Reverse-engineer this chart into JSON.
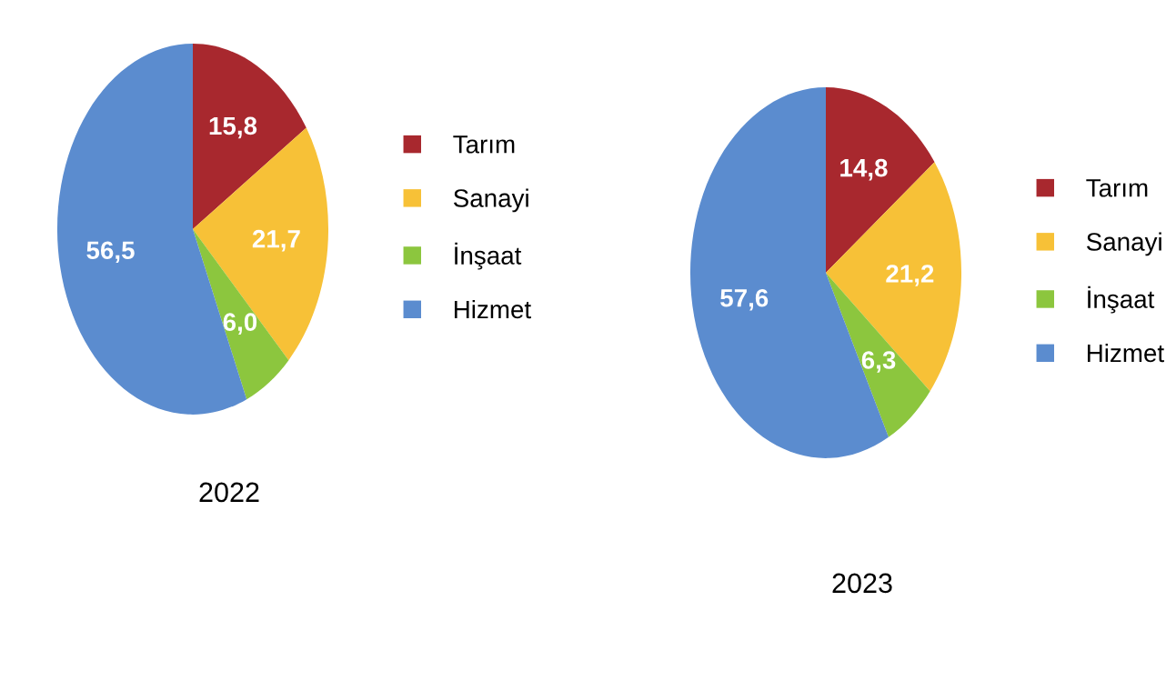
{
  "chart_data": [
    {
      "type": "pie",
      "title": "2022",
      "categories": [
        "Tarım",
        "Sanayi",
        "İnşaat",
        "Hizmet"
      ],
      "values": [
        15.8,
        21.7,
        6.0,
        56.5
      ],
      "value_labels": [
        "15,8",
        "21,7",
        "6,0",
        "56,5"
      ],
      "colors": [
        "#a8282e",
        "#f7c137",
        "#8cc63e",
        "#5b8ccf"
      ],
      "legend": "right"
    },
    {
      "type": "pie",
      "title": "2023",
      "categories": [
        "Tarım",
        "Sanayi",
        "İnşaat",
        "Hizmet"
      ],
      "values": [
        14.8,
        21.2,
        6.3,
        57.6
      ],
      "value_labels": [
        "14,8",
        "21,2",
        "6,3",
        "57,6"
      ],
      "colors": [
        "#a8282e",
        "#f7c137",
        "#8cc63e",
        "#5b8ccf"
      ],
      "legend": "right"
    }
  ]
}
